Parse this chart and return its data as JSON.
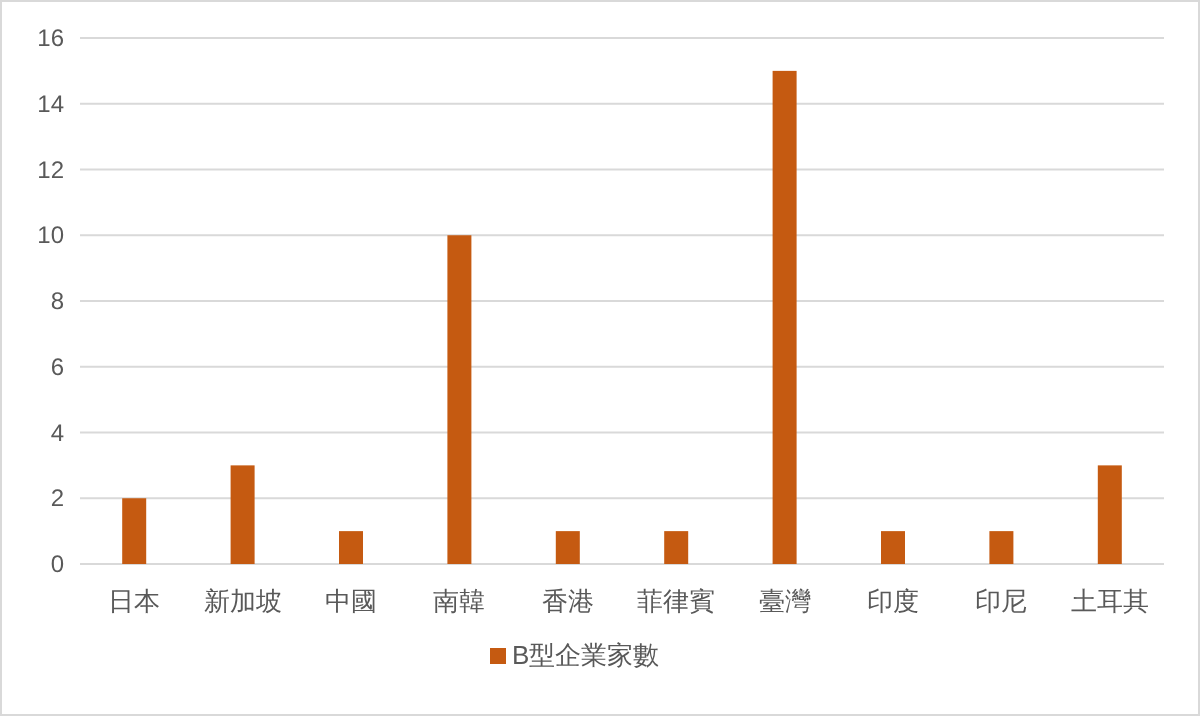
{
  "chart_data": {
    "type": "bar",
    "categories": [
      "日本",
      "新加坡",
      "中國",
      "南韓",
      "香港",
      "菲律賓",
      "臺灣",
      "印度",
      "印尼",
      "土耳其"
    ],
    "series": [
      {
        "name": "B型企業家數",
        "color": "#c55a11",
        "values": [
          2,
          3,
          1,
          10,
          1,
          1,
          15,
          1,
          1,
          3
        ]
      }
    ],
    "ylim": [
      0,
      16
    ],
    "yticks": [
      0,
      2,
      4,
      6,
      8,
      10,
      12,
      14,
      16
    ],
    "grid": "y",
    "legend": "bottom"
  }
}
